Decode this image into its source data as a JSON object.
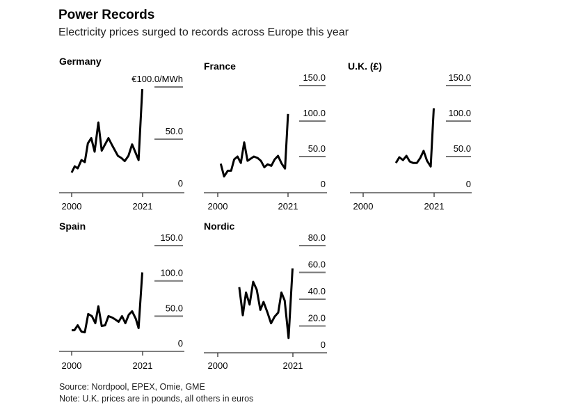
{
  "header": {
    "title": "Power Records",
    "subtitle": "Electricity prices surged to records across Europe this year"
  },
  "footer": {
    "source": "Source: Nordpool, EPEX, Omie, GME",
    "note": "Note: U.K. prices are in pounds, all others in euros"
  },
  "chart_data": [
    {
      "type": "line",
      "title": "Germany",
      "xlabel": "",
      "ylabel": "€/MWh",
      "x_ticks": [
        "2000",
        "2021"
      ],
      "xlim": [
        2000,
        2021
      ],
      "ylim": [
        0,
        100
      ],
      "y_ticks": [
        {
          "value": 0,
          "label": "0"
        },
        {
          "value": 50,
          "label": "50.0"
        },
        {
          "value": 100,
          "label": "€100.0/MWh"
        }
      ],
      "x": [
        2000,
        2000.9,
        2001.8,
        2002.9,
        2003.9,
        2004.8,
        2005.8,
        2006.8,
        2007.9,
        2008.9,
        2010.9,
        2012,
        2013.7,
        2014.7,
        2015.7,
        2016.8,
        2017.9,
        2019.8,
        2020.9
      ],
      "y": [
        18,
        24,
        22,
        30,
        28,
        46,
        51,
        38,
        66,
        39,
        51,
        44,
        34,
        32,
        29,
        34,
        45,
        30,
        98
      ]
    },
    {
      "type": "line",
      "title": "France",
      "xlim": [
        2000,
        2021
      ],
      "ylim": [
        0,
        150
      ],
      "x_ticks": [
        "2000",
        "2021"
      ],
      "y_ticks": [
        {
          "value": 0,
          "label": "0"
        },
        {
          "value": 50,
          "label": "50.0"
        },
        {
          "value": 100,
          "label": "100.0"
        },
        {
          "value": 150,
          "label": "150.0"
        }
      ],
      "x": [
        2000.9,
        2001.9,
        2003,
        2004,
        2004.9,
        2005.9,
        2006.9,
        2007.9,
        2008.9,
        2010.8,
        2011.9,
        2012.9,
        2013.9,
        2014.9,
        2016,
        2017,
        2018,
        2019.1,
        2020.1,
        2021
      ],
      "y": [
        40,
        22,
        30,
        30,
        46,
        50,
        41,
        70,
        44,
        50,
        48,
        44,
        35,
        39,
        37,
        46,
        51,
        40,
        33,
        110
      ]
    },
    {
      "type": "line",
      "title": "U.K. (£)",
      "xlim": [
        2000,
        2021
      ],
      "ylim": [
        0,
        150
      ],
      "x_ticks": [
        "2000",
        "2021"
      ],
      "y_ticks": [
        {
          "value": 0,
          "label": "0"
        },
        {
          "value": 50,
          "label": "50.0"
        },
        {
          "value": 100,
          "label": "100.0"
        },
        {
          "value": 150,
          "label": "150.0"
        }
      ],
      "x": [
        2009.7,
        2010.7,
        2011.8,
        2012.8,
        2013.8,
        2014.8,
        2015.9,
        2016.9,
        2017.9,
        2018.9,
        2020,
        2020.9
      ],
      "y": [
        41,
        49,
        45,
        51,
        43,
        41,
        41,
        48,
        58,
        44,
        36,
        118
      ]
    },
    {
      "type": "line",
      "title": "Spain",
      "xlim": [
        2000,
        2021
      ],
      "ylim": [
        0,
        150
      ],
      "x_ticks": [
        "2000",
        "2021"
      ],
      "y_ticks": [
        {
          "value": 0,
          "label": "0"
        },
        {
          "value": 50,
          "label": "50.0"
        },
        {
          "value": 100,
          "label": "100.0"
        },
        {
          "value": 150,
          "label": "150.0"
        }
      ],
      "x": [
        2000,
        2000.8,
        2001.8,
        2002.9,
        2003.9,
        2004.9,
        2006,
        2007,
        2007.9,
        2008.9,
        2009.9,
        2010.9,
        2012,
        2013,
        2013.9,
        2014.9,
        2015.9,
        2016.9,
        2017.9,
        2019,
        2019.8,
        2020.9
      ],
      "y": [
        30,
        30,
        37,
        28,
        27,
        53,
        50,
        40,
        64,
        36,
        37,
        50,
        48,
        45,
        42,
        50,
        40,
        52,
        57,
        46,
        33,
        112
      ]
    },
    {
      "type": "line",
      "title": "Nordic",
      "xlim": [
        2000,
        2021
      ],
      "ylim": [
        0,
        80
      ],
      "x_ticks": [
        "2000",
        "2021"
      ],
      "y_ticks": [
        {
          "value": 0,
          "label": "0"
        },
        {
          "value": 20,
          "label": "20.0"
        },
        {
          "value": 40,
          "label": "40.0"
        },
        {
          "value": 60,
          "label": "60.0"
        },
        {
          "value": 80,
          "label": "80.0"
        }
      ],
      "x": [
        2006,
        2007,
        2007.9,
        2008.9,
        2009.9,
        2010.9,
        2011.9,
        2012.8,
        2013.9,
        2014.9,
        2015.9,
        2016.9,
        2017.8,
        2018.7,
        2019.8,
        2020.9
      ],
      "y": [
        49,
        28,
        45,
        36,
        53,
        47,
        32,
        38,
        30,
        22,
        27,
        30,
        45,
        39,
        11,
        63
      ]
    }
  ]
}
